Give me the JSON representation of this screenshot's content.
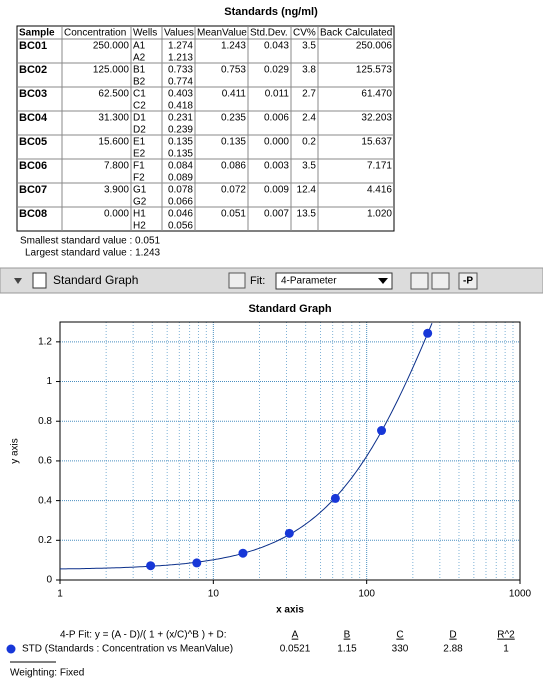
{
  "table": {
    "title": "Standards (ng/ml)",
    "columns": [
      "Sample",
      "Concentration",
      "Wells",
      "Values",
      "MeanValue",
      "Std.Dev.",
      "CV%",
      "Back Calculated"
    ],
    "rows": [
      {
        "sample": "BC01",
        "concentration": "250.000",
        "wells": [
          "A1",
          "A2"
        ],
        "values": [
          "1.274",
          "1.213"
        ],
        "mean": "1.243",
        "sd": "0.043",
        "cv": "3.5",
        "back": "250.006"
      },
      {
        "sample": "BC02",
        "concentration": "125.000",
        "wells": [
          "B1",
          "B2"
        ],
        "values": [
          "0.733",
          "0.774"
        ],
        "mean": "0.753",
        "sd": "0.029",
        "cv": "3.8",
        "back": "125.573"
      },
      {
        "sample": "BC03",
        "concentration": "62.500",
        "wells": [
          "C1",
          "C2"
        ],
        "values": [
          "0.403",
          "0.418"
        ],
        "mean": "0.411",
        "sd": "0.011",
        "cv": "2.7",
        "back": "61.470"
      },
      {
        "sample": "BC04",
        "concentration": "31.300",
        "wells": [
          "D1",
          "D2"
        ],
        "values": [
          "0.231",
          "0.239"
        ],
        "mean": "0.235",
        "sd": "0.006",
        "cv": "2.4",
        "back": "32.203"
      },
      {
        "sample": "BC05",
        "concentration": "15.600",
        "wells": [
          "E1",
          "E2"
        ],
        "values": [
          "0.135",
          "0.135"
        ],
        "mean": "0.135",
        "sd": "0.000",
        "cv": "0.2",
        "back": "15.637"
      },
      {
        "sample": "BC06",
        "concentration": "7.800",
        "wells": [
          "F1",
          "F2"
        ],
        "values": [
          "0.084",
          "0.089"
        ],
        "mean": "0.086",
        "sd": "0.003",
        "cv": "3.5",
        "back": "7.171"
      },
      {
        "sample": "BC07",
        "concentration": "3.900",
        "wells": [
          "G1",
          "G2"
        ],
        "values": [
          "0.078",
          "0.066"
        ],
        "mean": "0.072",
        "sd": "0.009",
        "cv": "12.4",
        "back": "4.416"
      },
      {
        "sample": "BC08",
        "concentration": "0.000",
        "wells": [
          "H1",
          "H2"
        ],
        "values": [
          "0.046",
          "0.056"
        ],
        "mean": "0.051",
        "sd": "0.007",
        "cv": "13.5",
        "back": "1.020"
      }
    ]
  },
  "summary": [
    "Smallest standard value : 0.051",
    "Largest standard value : 1.243"
  ],
  "toolbar": {
    "section": "Standard Graph",
    "fit_label": "Fit:",
    "fit_value": "4-Parameter",
    "button": "-P"
  },
  "chart_data": {
    "type": "scatter",
    "title": "Standard Graph",
    "x_label": "x axis",
    "y_label": "y axis",
    "xlog": true,
    "xlim": [
      1,
      1000
    ],
    "xticks": [
      1,
      10,
      100,
      1000
    ],
    "xminor": [
      2,
      3,
      4,
      5,
      6,
      7,
      8,
      9,
      20,
      30,
      40,
      50,
      60,
      70,
      80,
      90,
      200,
      300,
      400,
      500,
      600,
      700,
      800,
      900
    ],
    "ylim": [
      0,
      1.3
    ],
    "yticks": [
      0,
      0.2,
      0.4,
      0.6,
      0.8,
      1,
      1.2
    ],
    "grid": true,
    "series": [
      {
        "name": "STD (Standards : Concentration vs MeanValue)",
        "color": "#1737d8",
        "x": [
          3.9,
          7.8,
          15.6,
          31.3,
          62.5,
          125,
          250
        ],
        "values": [
          0.072,
          0.086,
          0.135,
          0.235,
          0.411,
          0.753,
          1.243
        ]
      }
    ],
    "fit": {
      "label": "4-P Fit: y = (A - D)/( 1 + (x/C)^B ) + D:",
      "color": "#0b2f8a",
      "columns": [
        "A",
        "B",
        "C",
        "D",
        "R^2"
      ],
      "values": [
        0.0521,
        1.15,
        330,
        2.88,
        1
      ]
    },
    "weighting": "Weighting: Fixed"
  }
}
